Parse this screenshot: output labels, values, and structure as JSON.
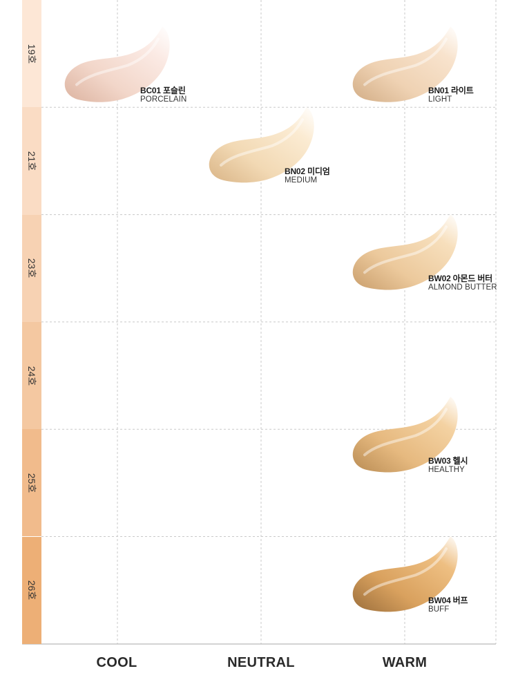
{
  "chart_data": {
    "type": "scatter",
    "title": "",
    "rows": [
      {
        "label": "19호",
        "color": "#fde7d6"
      },
      {
        "label": "21호",
        "color": "#fadcc4"
      },
      {
        "label": "23호",
        "color": "#f7d2b3"
      },
      {
        "label": "24호",
        "color": "#f4c8a1"
      },
      {
        "label": "25호",
        "color": "#f1bb8c"
      },
      {
        "label": "26호",
        "color": "#edaf76"
      }
    ],
    "columns": [
      "COOL",
      "NEUTRAL",
      "WARM"
    ],
    "grid": true,
    "products": [
      {
        "code": "BC01 포슬린",
        "name": "PORCELAIN",
        "column": "COOL",
        "shade": 19.5,
        "color_light": "#fbeae4",
        "color_mid": "#f2d6c9",
        "color_dark": "#dcb3a0"
      },
      {
        "code": "BN02 미디엄",
        "name": "MEDIUM",
        "column": "NEUTRAL",
        "shade": 21,
        "color_light": "#fbebd2",
        "color_mid": "#f2d9b4",
        "color_dark": "#d9b486"
      },
      {
        "code": "BN01 라이트",
        "name": "LIGHT",
        "column": "WARM",
        "shade": 19.5,
        "color_light": "#f8e3cd",
        "color_mid": "#efd2b3",
        "color_dark": "#d2ad86"
      },
      {
        "code": "BW02 아몬드 버터",
        "name": "ALMOND BUTTER",
        "column": "WARM",
        "shade": 23,
        "color_light": "#f7dfbc",
        "color_mid": "#ecc99c",
        "color_dark": "#c99e6c"
      },
      {
        "code": "BW03 헬시",
        "name": "HEALTHY",
        "column": "WARM",
        "shade": 24.7,
        "color_light": "#f4d2a2",
        "color_mid": "#e6b97f",
        "color_dark": "#b98c54"
      },
      {
        "code": "BW04 버프",
        "name": "BUFF",
        "column": "WARM",
        "shade": 26,
        "color_light": "#eebf82",
        "color_mid": "#d9a15e",
        "color_dark": "#9c6f3c"
      }
    ]
  }
}
